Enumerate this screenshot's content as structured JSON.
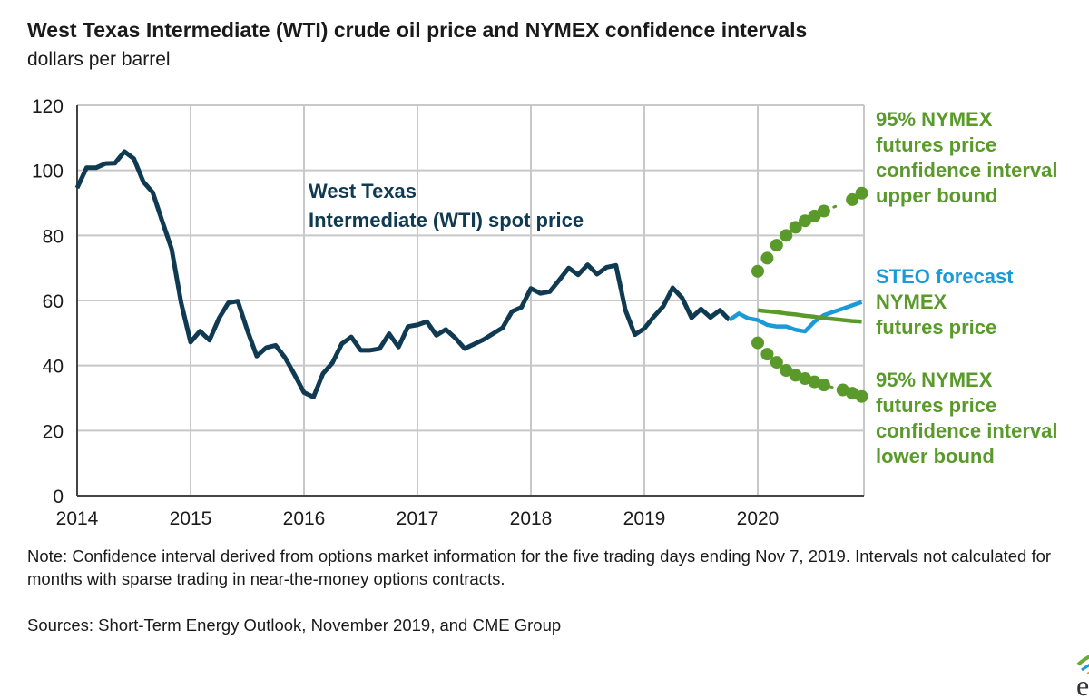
{
  "title": "West Texas Intermediate (WTI) crude oil price and NYMEX confidence intervals",
  "subtitle": "dollars per barrel",
  "note": "Note: Confidence interval derived from options market information for the five trading days ending Nov 7, 2019. Intervals not calculated for months with sparse trading in near-the-money options contracts.",
  "source": "Sources: Short-Term Energy Outlook, November 2019, and CME Group",
  "logo": "eia",
  "chart_data": {
    "type": "line",
    "title": "West Texas Intermediate (WTI) crude oil price and NYMEX confidence intervals",
    "ylabel": "dollars per barrel",
    "ylim": [
      0,
      120
    ],
    "xlim": [
      2014,
      2021
    ],
    "yticks": [
      "0",
      "20",
      "40",
      "60",
      "80",
      "100",
      "120"
    ],
    "xticks": [
      "2014",
      "2015",
      "2016",
      "2017",
      "2018",
      "2019",
      "2020"
    ],
    "grid": true,
    "series": [
      {
        "name": "West Texas Intermediate (WTI) spot price",
        "color": "#0f3a52",
        "style": "solid",
        "start": "2014-01",
        "values": [
          94.6,
          100.8,
          100.8,
          102.1,
          102.2,
          105.8,
          103.6,
          96.5,
          93.2,
          84.4,
          75.8,
          59.3,
          47.2,
          50.6,
          47.8,
          54.5,
          59.3,
          59.8,
          50.9,
          42.9,
          45.5,
          46.2,
          42.4,
          37.2,
          31.7,
          30.3,
          37.5,
          40.8,
          46.7,
          48.8,
          44.7,
          44.7,
          45.2,
          49.8,
          45.7,
          52.0,
          52.5,
          53.5,
          49.3,
          51.1,
          48.5,
          45.2,
          46.6,
          48.0,
          49.8,
          51.6,
          56.6,
          57.9,
          63.7,
          62.2,
          62.7,
          66.3,
          70.0,
          67.9,
          71.0,
          68.1,
          70.2,
          70.8,
          57.0,
          49.5,
          51.4,
          55.0,
          58.2,
          63.9,
          60.8,
          54.7,
          57.4,
          54.8,
          57.0,
          54.0
        ]
      },
      {
        "name": "STEO forecast",
        "color": "#1a9ad6",
        "style": "solid",
        "start": "2019-10",
        "values": [
          54.0,
          56.0,
          54.5,
          54.0,
          52.5,
          52.0,
          52.0,
          51.0,
          50.5,
          53.5,
          55.5,
          56.5,
          57.5,
          58.5,
          59.5
        ]
      },
      {
        "name": "NYMEX futures price",
        "color": "#5a9a2a",
        "style": "solid",
        "start": "2020-01",
        "values": [
          57.0,
          56.7,
          56.4,
          56.0,
          55.7,
          55.3,
          55.0,
          54.6,
          54.3,
          54.0,
          53.7,
          53.5
        ]
      },
      {
        "name": "95% NYMEX futures price confidence interval upper bound",
        "color": "#5a9a2a",
        "style": "dotted",
        "start": "2020-01",
        "values": [
          69,
          73,
          77,
          80,
          82.5,
          84.5,
          86,
          87.5,
          null,
          null,
          91,
          93
        ]
      },
      {
        "name": "95% NYMEX futures price confidence interval lower bound",
        "color": "#5a9a2a",
        "style": "dotted",
        "start": "2020-01",
        "values": [
          47,
          43.5,
          41,
          38.5,
          37,
          36,
          35,
          34,
          null,
          32.5,
          31.5,
          30.5
        ]
      }
    ],
    "annotations": {
      "wti": [
        "West Texas",
        "Intermediate (WTI) spot price"
      ],
      "upper": [
        "95% NYMEX",
        "futures price",
        "confidence interval",
        "upper bound"
      ],
      "steo": "STEO forecast",
      "nymex": [
        "NYMEX",
        "futures price"
      ],
      "lower": [
        "95% NYMEX",
        "futures price",
        "confidence interval",
        "lower bound"
      ]
    }
  }
}
